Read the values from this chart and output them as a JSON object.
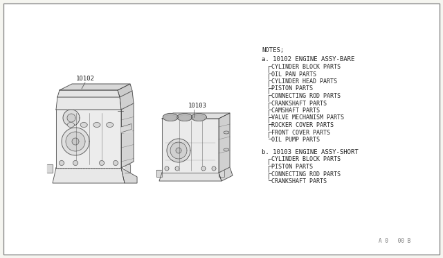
{
  "bg_color": "#f5f5f0",
  "inner_bg": "#ffffff",
  "border_color": "#999999",
  "line_color": "#444444",
  "text_color": "#222222",
  "page_number": "A 0   00 B",
  "label_10102": "10102",
  "label_10103": "10103",
  "notes_header": "NOTES;",
  "section_a_header": "a. 10102 ENGINE ASSY-BARE",
  "section_a_items": [
    "CYLINDER BLOCK PARTS",
    "OIL PAN PARTS",
    "CYLINDER HEAD PARTS",
    "PISTON PARTS",
    "CONNECTING ROD PARTS",
    "CRANKSHAFT PARTS",
    "CAMSHAFT PARTS",
    "VALVE MECHANISM PARTS",
    "ROCKER COVER PARTS",
    "FRONT COVER PARTS",
    "OIL PUMP PARTS"
  ],
  "section_b_header": "b. 10103 ENGINE ASSY-SHORT",
  "section_b_items": [
    "CYLINDER BLOCK PARTS",
    "PISTON PARTS",
    "CONNECTING ROD PARTS",
    "CRANKSHAFT PARTS"
  ],
  "font_size_notes": 6.5,
  "font_size_section": 6.5,
  "font_size_item": 6.0,
  "font_size_part_num": 6.5,
  "font_size_page": 5.5
}
